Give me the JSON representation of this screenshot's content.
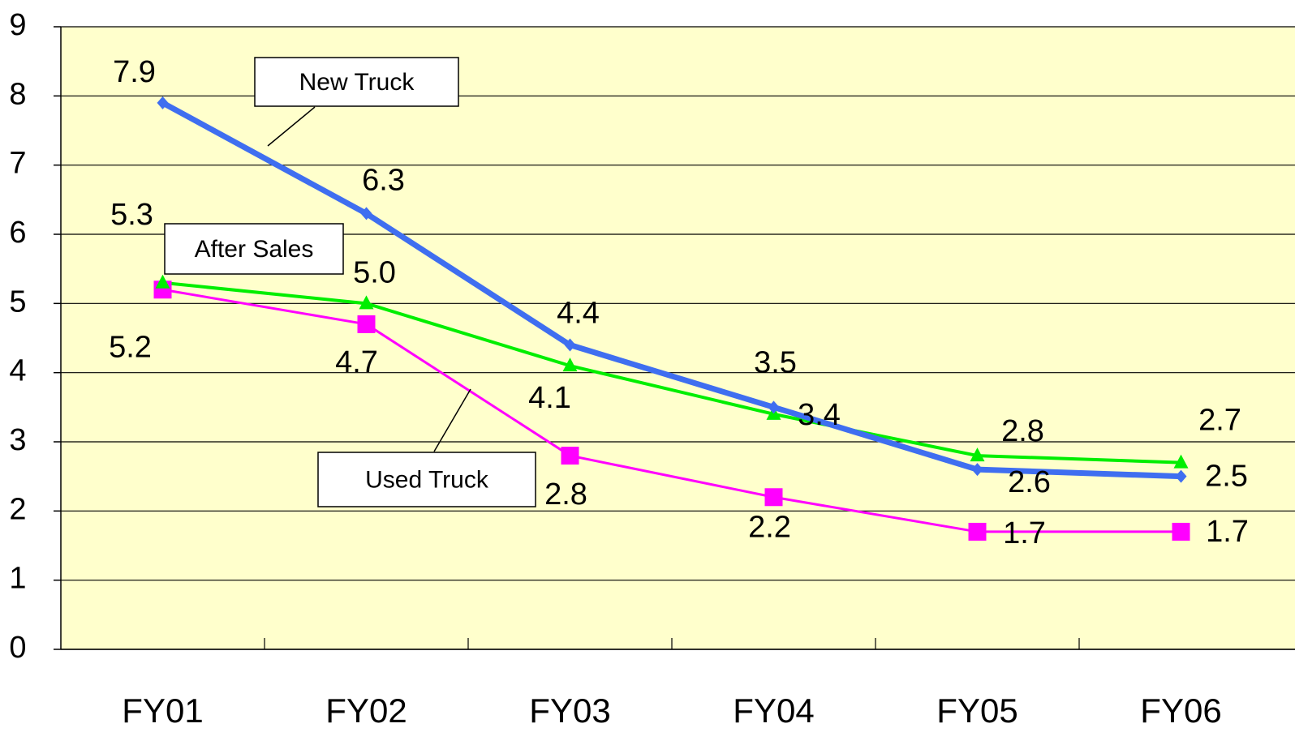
{
  "chart_data": {
    "type": "line",
    "categories": [
      "FY01",
      "FY02",
      "FY03",
      "FY04",
      "FY05",
      "FY06"
    ],
    "series": [
      {
        "name": "New Truck",
        "color": "#3f6ef0",
        "values": [
          7.9,
          6.3,
          4.4,
          3.5,
          2.6,
          2.5
        ],
        "value_labels": [
          "7.9",
          "6.3",
          "4.4",
          "3.5",
          "2.6",
          "2.5"
        ]
      },
      {
        "name": "After Sales",
        "color": "#00ee00",
        "values": [
          5.3,
          5.0,
          4.1,
          3.4,
          2.8,
          2.7
        ],
        "value_labels": [
          "5.3",
          "5.0",
          "4.1",
          "3.4",
          "2.8",
          "2.7"
        ]
      },
      {
        "name": "Used Truck",
        "color": "#ff00ff",
        "values": [
          5.2,
          4.7,
          2.8,
          2.2,
          1.7,
          1.7
        ],
        "value_labels": [
          "5.2",
          "4.7",
          "2.8",
          "2.2",
          "1.7",
          "1.7"
        ]
      }
    ],
    "ylim": [
      0,
      9
    ],
    "yticks": [
      0,
      1,
      2,
      3,
      4,
      5,
      6,
      7,
      8,
      9
    ],
    "grid": true
  }
}
